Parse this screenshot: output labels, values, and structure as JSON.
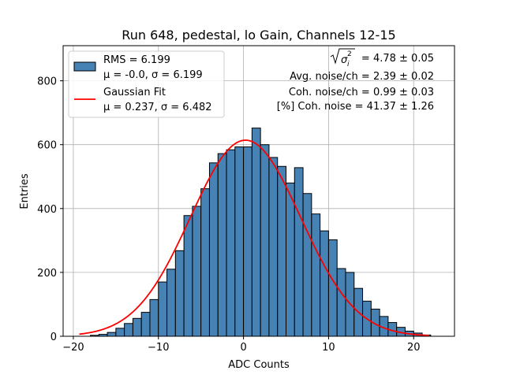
{
  "chart_data": {
    "type": "bar",
    "title": "Run 648, pedestal, lo Gain, Channels 12-15",
    "xlabel": "ADC Counts",
    "ylabel": "Entries",
    "xlim": [
      -21.2,
      24.8
    ],
    "ylim": [
      0,
      910
    ],
    "xticks": [
      -20,
      -10,
      0,
      10,
      20
    ],
    "yticks": [
      0,
      200,
      400,
      600,
      800
    ],
    "grid": true,
    "bin_width": 1,
    "bin_start": -18,
    "values": [
      3,
      6,
      12,
      25,
      40,
      56,
      75,
      115,
      170,
      210,
      268,
      378,
      407,
      462,
      543,
      572,
      584,
      593,
      593,
      652,
      600,
      560,
      532,
      480,
      528,
      447,
      383,
      330,
      302,
      212,
      200,
      150,
      110,
      85,
      62,
      43,
      28,
      16,
      10,
      4
    ],
    "colors": {
      "bar_fill": "#4682b4",
      "bar_edge": "#000000",
      "fit": "#ff0000",
      "grid": "#b0b0b0"
    },
    "legend": {
      "position": "top-left",
      "entries": [
        {
          "type": "patch",
          "line1": "RMS = 6.199",
          "line2": "μ = -0.0, σ = 6.199"
        },
        {
          "type": "line",
          "line1": "Gaussian Fit",
          "line2": "μ = 0.237, σ = 6.482"
        }
      ]
    },
    "fit": {
      "mu": 0.237,
      "sigma": 6.482,
      "amplitude": 614,
      "x_range": [
        -19.3,
        21.8
      ]
    },
    "annotations": {
      "sigma_total_value": " = 4.78 ± 0.05",
      "avg_noise": "Avg. noise/ch = 2.39 ± 0.02",
      "coh_noise": "Coh. noise/ch = 0.99 ± 0.03",
      "coh_pct": "[%] Coh. noise = 41.37 ± 1.26"
    }
  }
}
